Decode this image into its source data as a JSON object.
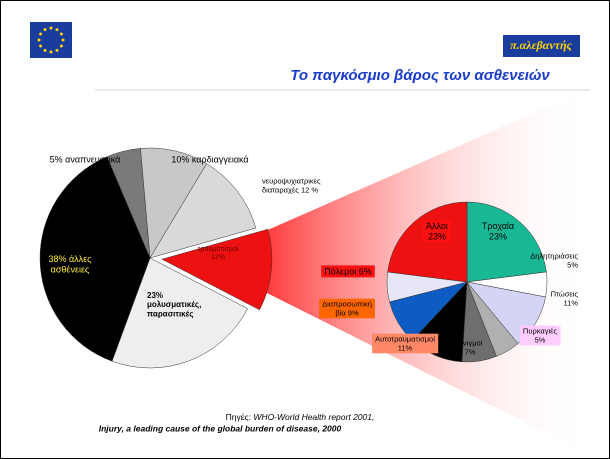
{
  "logo": "π.αλεβαντής",
  "title": "Το παγκόσμιο βάρος των ασθενειών",
  "source": {
    "prefix": "Πηγές:",
    "report": "WHO-World Health report 2001,",
    "line2": "Injury, a leading cause of the global burden of disease, 2000"
  },
  "chart_data": [
    {
      "type": "pie",
      "values": [
        10,
        12,
        12,
        23,
        38,
        5
      ],
      "value_labels": [
        [
          "10% καρδιαγγειακά"
        ],
        [
          "νευροψυχιατρικες",
          "διαταραχές 12 %"
        ],
        [
          "τραυματισμοί",
          "12%"
        ],
        [
          "23%",
          "μολυσματικές,",
          "παρασιτικές"
        ],
        [
          "38% άλλες",
          "ασθένειες"
        ],
        [
          "5% αναπνευστικά"
        ]
      ],
      "colors": [
        "#c8c8c8",
        "#d9d9d9",
        "#ee1111",
        "#eeeeee",
        "#000000",
        "#7a7a7a"
      ]
    },
    {
      "type": "pie",
      "values": [
        23,
        5,
        11,
        5,
        7,
        11,
        9,
        6,
        23
      ],
      "value_labels": [
        [
          "Τροχαία",
          "23%"
        ],
        [
          "Δηλητηριάσεις",
          "5%"
        ],
        [
          "Πτώσεις",
          "11%"
        ],
        [
          "Πυρκαγιές",
          "5%"
        ],
        [
          "Πνιγμοί",
          "7%"
        ],
        [
          "Αυτοτραυματισμοί",
          "11%"
        ],
        [
          "Διαπροσωπική",
          "βία 9%"
        ],
        [
          "Πόλεμοι 6%"
        ],
        [
          "Άλλοι",
          "23%"
        ]
      ],
      "colors": [
        "#19b894",
        "#ffffff",
        "#d4d4f4",
        "#b0b0b0",
        "#6e6e6e",
        "#000000",
        "#0c5cc4",
        "#e6e6f6",
        "#ee1111"
      ]
    }
  ]
}
